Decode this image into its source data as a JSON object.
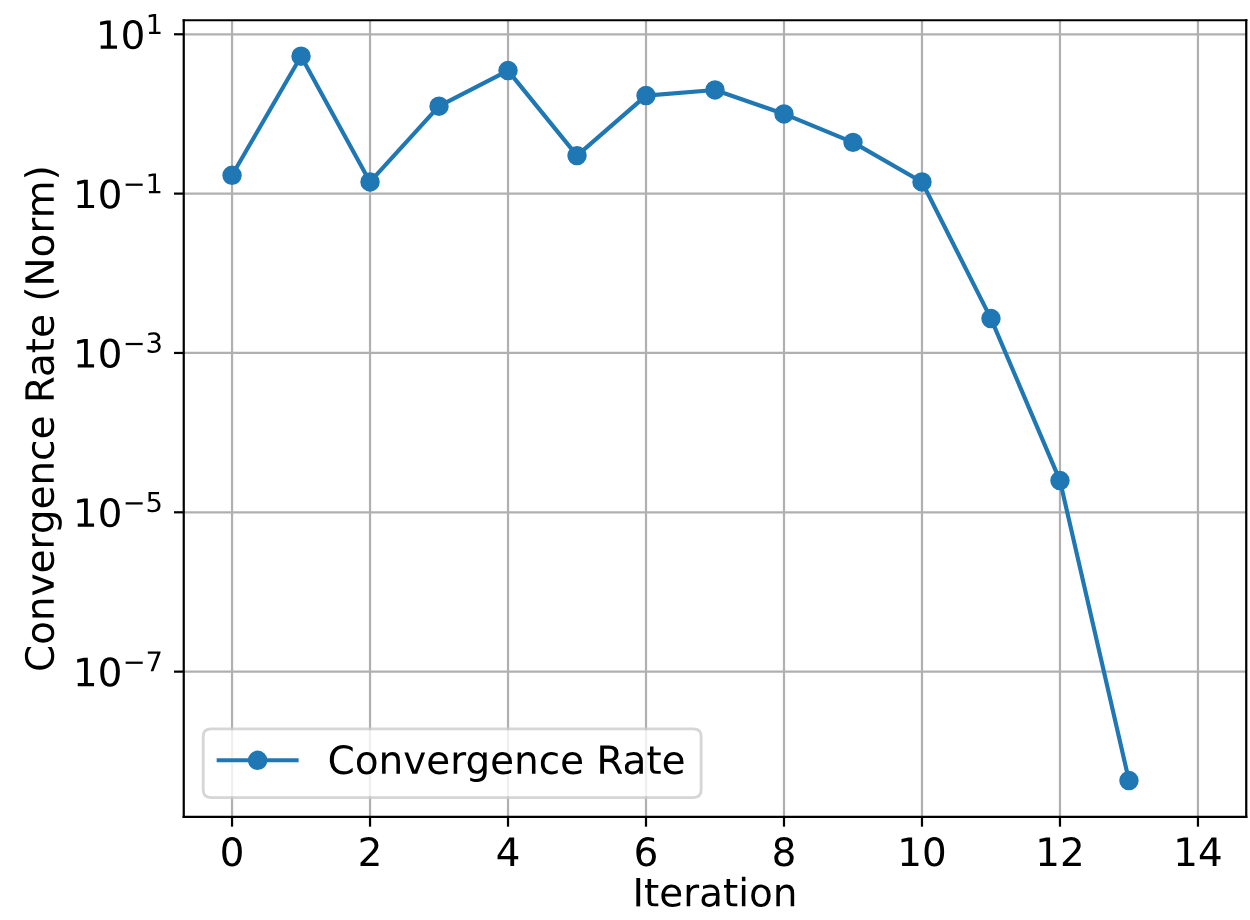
{
  "chart_data": {
    "type": "line",
    "xlabel": "Iteration",
    "ylabel": "Convergence Rate (Norm)",
    "x": [
      0,
      1,
      2,
      3,
      4,
      5,
      6,
      7,
      8,
      9,
      10,
      11,
      12,
      13
    ],
    "series": [
      {
        "name": "Convergence Rate",
        "color": "#1f77b4",
        "values": [
          0.17,
          5.3,
          0.14,
          1.25,
          3.5,
          0.3,
          1.7,
          2.0,
          1.0,
          0.44,
          0.14,
          0.0027,
          2.5e-05,
          4.3e-09
        ]
      }
    ],
    "log": "y",
    "xlim": [
      -0.7,
      14.7
    ],
    "ylim": [
      1.5e-09,
      15
    ],
    "xticks": [
      0,
      2,
      4,
      6,
      8,
      10,
      12,
      14
    ],
    "yticks": [
      {
        "value": 10,
        "label": "10$^{1}$"
      },
      {
        "value": 0.1,
        "label": "10$^{−1}$"
      },
      {
        "value": 0.001,
        "label": "10$^{−3}$"
      },
      {
        "value": 1e-05,
        "label": "10$^{−5}$"
      },
      {
        "value": 1e-07,
        "label": "10$^{−7}$"
      }
    ],
    "grid": true,
    "legend": "bottom left",
    "marker": "circle",
    "line_style": "solid"
  }
}
